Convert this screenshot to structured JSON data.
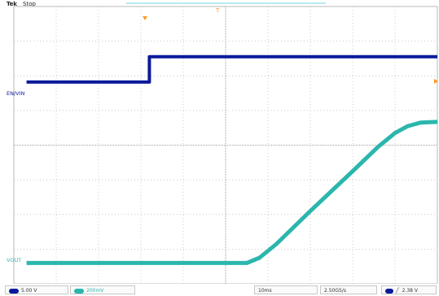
{
  "header": {
    "brand": "Tek",
    "run_state": "Stop"
  },
  "markers": {
    "trigger_position_symbol": "T"
  },
  "channels": [
    {
      "id": "1",
      "label": "EN/VIN",
      "color": "#0a1a9a"
    },
    {
      "id": "2",
      "label": "VOUT",
      "color": "#2bb6ad"
    }
  ],
  "status": {
    "ch1_scale": "5.00 V",
    "ch2_scale": "200mV",
    "timebase": "10ms",
    "sample_rate": "2.50GS/s",
    "trigger_slope_symbol": "╱",
    "trigger_level": "2.38 V"
  },
  "colors": {
    "grid": "#b8b8b8",
    "center_line": "#8a8a8a",
    "trigger_marker": "#ff9a1a",
    "en_vin": "#0a1a9a",
    "vout": "#2bb6ad"
  },
  "chart_data": {
    "type": "line",
    "title": "",
    "xlabel": "",
    "ylabel": "",
    "grid": true,
    "divisions": {
      "x": 10,
      "y": 8
    },
    "xlim": [
      0,
      10
    ],
    "ylim": [
      0,
      8
    ],
    "series": [
      {
        "name": "EN/VIN",
        "x": [
          0.3,
          3.2,
          3.2,
          10.0
        ],
        "y": [
          5.82,
          5.82,
          6.55,
          6.55
        ]
      },
      {
        "name": "VOUT",
        "x": [
          0.3,
          5.5,
          5.8,
          6.2,
          7.0,
          8.0,
          8.6,
          9.0,
          9.3,
          9.6,
          10.0
        ],
        "y": [
          0.6,
          0.6,
          0.75,
          1.15,
          2.1,
          3.25,
          3.95,
          4.35,
          4.55,
          4.65,
          4.67
        ]
      }
    ]
  }
}
